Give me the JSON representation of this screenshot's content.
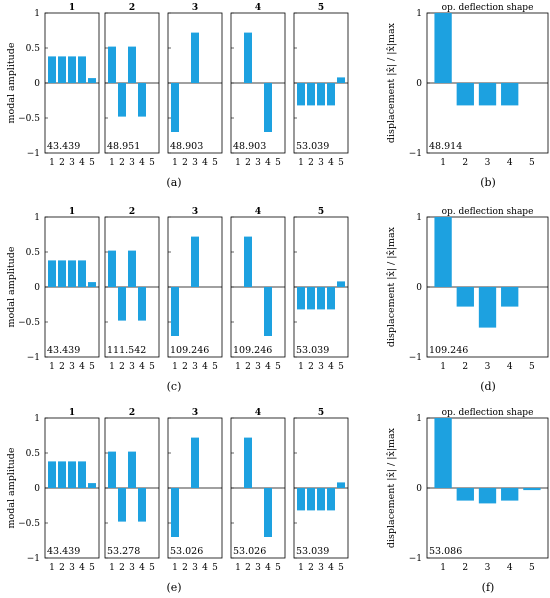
{
  "chart_data": [
    {
      "type": "bar",
      "row_caption": "(a)",
      "mode_titles": [
        "1",
        "2",
        "3",
        "4",
        "5"
      ],
      "categories": [
        "1",
        "2",
        "3",
        "4",
        "5"
      ],
      "ylabel": "modal amplitude",
      "ylim": [
        -1,
        1
      ],
      "yticks": [
        "1",
        "0.5",
        "0",
        "−0.5",
        "−1"
      ],
      "modes": [
        {
          "values": [
            0.38,
            0.38,
            0.38,
            0.38,
            0.07
          ],
          "frequency": "43.439"
        },
        {
          "values": [
            0.52,
            -0.48,
            0.52,
            -0.48,
            0
          ],
          "frequency": "48.951"
        },
        {
          "values": [
            -0.7,
            0,
            0.72,
            0,
            0
          ],
          "frequency": "48.903"
        },
        {
          "values": [
            0,
            0.72,
            0,
            -0.7,
            0
          ],
          "frequency": "48.903"
        },
        {
          "values": [
            -0.32,
            -0.32,
            -0.32,
            -0.32,
            0.08
          ],
          "frequency": "53.039"
        }
      ],
      "ods": {
        "caption": "(b)",
        "title": "op. deflection shape",
        "ylabel": "displacement |x̂| / |x̂|max",
        "ylim": [
          -1,
          1
        ],
        "categories": [
          "1",
          "2",
          "3",
          "4",
          "5"
        ],
        "values": [
          1.0,
          -0.32,
          -0.32,
          -0.32,
          0
        ],
        "frequency": "48.914"
      }
    },
    {
      "type": "bar",
      "row_caption": "(c)",
      "mode_titles": [
        "1",
        "2",
        "3",
        "4",
        "5"
      ],
      "categories": [
        "1",
        "2",
        "3",
        "4",
        "5"
      ],
      "ylabel": "modal amplitude",
      "ylim": [
        -1,
        1
      ],
      "yticks": [
        "1",
        "0.5",
        "0",
        "−0.5",
        "−1"
      ],
      "modes": [
        {
          "values": [
            0.38,
            0.38,
            0.38,
            0.38,
            0.07
          ],
          "frequency": "43.439"
        },
        {
          "values": [
            0.52,
            -0.48,
            0.52,
            -0.48,
            0
          ],
          "frequency": "111.542"
        },
        {
          "values": [
            -0.7,
            0,
            0.72,
            0,
            0
          ],
          "frequency": "109.246"
        },
        {
          "values": [
            0,
            0.72,
            0,
            -0.7,
            0
          ],
          "frequency": "109.246"
        },
        {
          "values": [
            -0.32,
            -0.32,
            -0.32,
            -0.32,
            0.08
          ],
          "frequency": "53.039"
        }
      ],
      "ods": {
        "caption": "(d)",
        "title": "op. deflection shape",
        "ylabel": "displacement |x̂| / |x̂|max",
        "ylim": [
          -1,
          1
        ],
        "categories": [
          "1",
          "2",
          "3",
          "4",
          "5"
        ],
        "values": [
          1.0,
          -0.28,
          -0.58,
          -0.28,
          0
        ],
        "frequency": "109.246"
      }
    },
    {
      "type": "bar",
      "row_caption": "(e)",
      "mode_titles": [
        "1",
        "2",
        "3",
        "4",
        "5"
      ],
      "categories": [
        "1",
        "2",
        "3",
        "4",
        "5"
      ],
      "ylabel": "modal amplitude",
      "ylim": [
        -1,
        1
      ],
      "yticks": [
        "1",
        "0.5",
        "0",
        "−0.5",
        "−1"
      ],
      "modes": [
        {
          "values": [
            0.38,
            0.38,
            0.38,
            0.38,
            0.07
          ],
          "frequency": "43.439"
        },
        {
          "values": [
            0.52,
            -0.48,
            0.52,
            -0.48,
            0
          ],
          "frequency": "53.278"
        },
        {
          "values": [
            -0.7,
            0,
            0.72,
            0,
            0
          ],
          "frequency": "53.026"
        },
        {
          "values": [
            0,
            0.72,
            0,
            -0.7,
            0
          ],
          "frequency": "53.026"
        },
        {
          "values": [
            -0.32,
            -0.32,
            -0.32,
            -0.32,
            0.08
          ],
          "frequency": "53.039"
        }
      ],
      "ods": {
        "caption": "(f)",
        "title": "op. deflection shape",
        "ylabel": "displacement |x̂| / |x̂|max",
        "ylim": [
          -1,
          1
        ],
        "categories": [
          "1",
          "2",
          "3",
          "4",
          "5"
        ],
        "values": [
          1.0,
          -0.18,
          -0.22,
          -0.18,
          -0.03
        ],
        "frequency": "53.086"
      }
    }
  ],
  "colors": {
    "bar": "#1da1e0",
    "axis": "#000000"
  }
}
